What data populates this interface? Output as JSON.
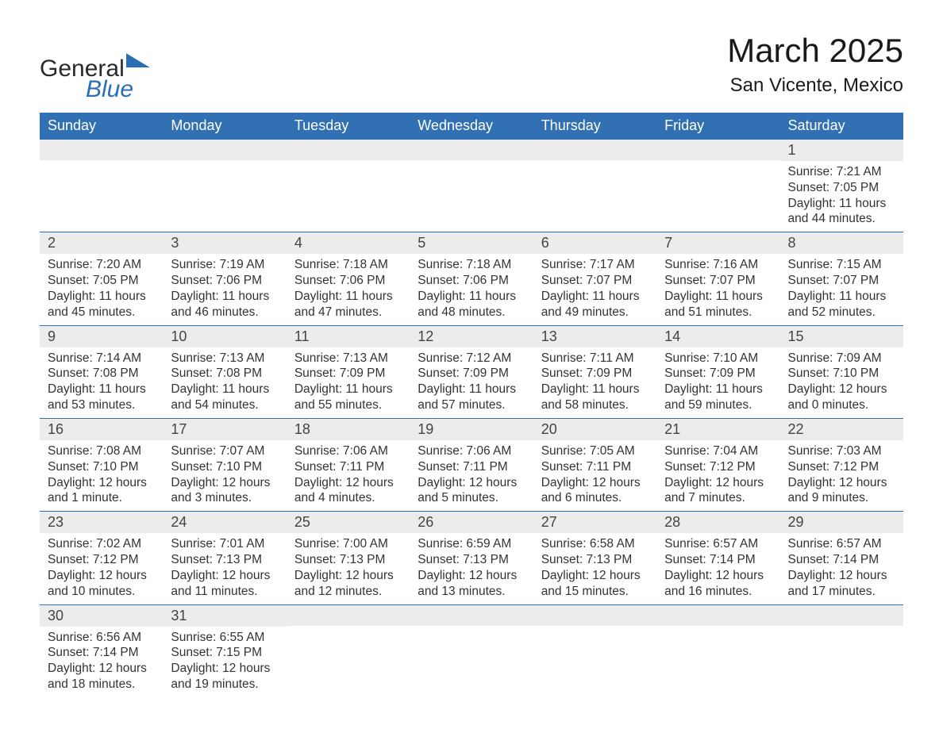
{
  "logo": {
    "word1": "General",
    "word2": "Blue"
  },
  "title": "March 2025",
  "location": "San Vicente, Mexico",
  "colors": {
    "header_bg": "#3070b3",
    "header_text": "#ffffff",
    "daynum_bg": "#ececec",
    "text": "#333333",
    "rule": "#3070b3",
    "logo_blue": "#296fb4",
    "page_bg": "#ffffff"
  },
  "typography": {
    "title_fontsize": 42,
    "location_fontsize": 24,
    "weekday_fontsize": 18,
    "daynum_fontsize": 18,
    "body_fontsize": 15.5,
    "font_family": "Arial"
  },
  "weekdays": [
    "Sunday",
    "Monday",
    "Tuesday",
    "Wednesday",
    "Thursday",
    "Friday",
    "Saturday"
  ],
  "weeks": [
    [
      {
        "n": "",
        "sunrise": "",
        "sunset": "",
        "daylight": ""
      },
      {
        "n": "",
        "sunrise": "",
        "sunset": "",
        "daylight": ""
      },
      {
        "n": "",
        "sunrise": "",
        "sunset": "",
        "daylight": ""
      },
      {
        "n": "",
        "sunrise": "",
        "sunset": "",
        "daylight": ""
      },
      {
        "n": "",
        "sunrise": "",
        "sunset": "",
        "daylight": ""
      },
      {
        "n": "",
        "sunrise": "",
        "sunset": "",
        "daylight": ""
      },
      {
        "n": "1",
        "sunrise": "Sunrise: 7:21 AM",
        "sunset": "Sunset: 7:05 PM",
        "daylight": "Daylight: 11 hours and 44 minutes."
      }
    ],
    [
      {
        "n": "2",
        "sunrise": "Sunrise: 7:20 AM",
        "sunset": "Sunset: 7:05 PM",
        "daylight": "Daylight: 11 hours and 45 minutes."
      },
      {
        "n": "3",
        "sunrise": "Sunrise: 7:19 AM",
        "sunset": "Sunset: 7:06 PM",
        "daylight": "Daylight: 11 hours and 46 minutes."
      },
      {
        "n": "4",
        "sunrise": "Sunrise: 7:18 AM",
        "sunset": "Sunset: 7:06 PM",
        "daylight": "Daylight: 11 hours and 47 minutes."
      },
      {
        "n": "5",
        "sunrise": "Sunrise: 7:18 AM",
        "sunset": "Sunset: 7:06 PM",
        "daylight": "Daylight: 11 hours and 48 minutes."
      },
      {
        "n": "6",
        "sunrise": "Sunrise: 7:17 AM",
        "sunset": "Sunset: 7:07 PM",
        "daylight": "Daylight: 11 hours and 49 minutes."
      },
      {
        "n": "7",
        "sunrise": "Sunrise: 7:16 AM",
        "sunset": "Sunset: 7:07 PM",
        "daylight": "Daylight: 11 hours and 51 minutes."
      },
      {
        "n": "8",
        "sunrise": "Sunrise: 7:15 AM",
        "sunset": "Sunset: 7:07 PM",
        "daylight": "Daylight: 11 hours and 52 minutes."
      }
    ],
    [
      {
        "n": "9",
        "sunrise": "Sunrise: 7:14 AM",
        "sunset": "Sunset: 7:08 PM",
        "daylight": "Daylight: 11 hours and 53 minutes."
      },
      {
        "n": "10",
        "sunrise": "Sunrise: 7:13 AM",
        "sunset": "Sunset: 7:08 PM",
        "daylight": "Daylight: 11 hours and 54 minutes."
      },
      {
        "n": "11",
        "sunrise": "Sunrise: 7:13 AM",
        "sunset": "Sunset: 7:09 PM",
        "daylight": "Daylight: 11 hours and 55 minutes."
      },
      {
        "n": "12",
        "sunrise": "Sunrise: 7:12 AM",
        "sunset": "Sunset: 7:09 PM",
        "daylight": "Daylight: 11 hours and 57 minutes."
      },
      {
        "n": "13",
        "sunrise": "Sunrise: 7:11 AM",
        "sunset": "Sunset: 7:09 PM",
        "daylight": "Daylight: 11 hours and 58 minutes."
      },
      {
        "n": "14",
        "sunrise": "Sunrise: 7:10 AM",
        "sunset": "Sunset: 7:09 PM",
        "daylight": "Daylight: 11 hours and 59 minutes."
      },
      {
        "n": "15",
        "sunrise": "Sunrise: 7:09 AM",
        "sunset": "Sunset: 7:10 PM",
        "daylight": "Daylight: 12 hours and 0 minutes."
      }
    ],
    [
      {
        "n": "16",
        "sunrise": "Sunrise: 7:08 AM",
        "sunset": "Sunset: 7:10 PM",
        "daylight": "Daylight: 12 hours and 1 minute."
      },
      {
        "n": "17",
        "sunrise": "Sunrise: 7:07 AM",
        "sunset": "Sunset: 7:10 PM",
        "daylight": "Daylight: 12 hours and 3 minutes."
      },
      {
        "n": "18",
        "sunrise": "Sunrise: 7:06 AM",
        "sunset": "Sunset: 7:11 PM",
        "daylight": "Daylight: 12 hours and 4 minutes."
      },
      {
        "n": "19",
        "sunrise": "Sunrise: 7:06 AM",
        "sunset": "Sunset: 7:11 PM",
        "daylight": "Daylight: 12 hours and 5 minutes."
      },
      {
        "n": "20",
        "sunrise": "Sunrise: 7:05 AM",
        "sunset": "Sunset: 7:11 PM",
        "daylight": "Daylight: 12 hours and 6 minutes."
      },
      {
        "n": "21",
        "sunrise": "Sunrise: 7:04 AM",
        "sunset": "Sunset: 7:12 PM",
        "daylight": "Daylight: 12 hours and 7 minutes."
      },
      {
        "n": "22",
        "sunrise": "Sunrise: 7:03 AM",
        "sunset": "Sunset: 7:12 PM",
        "daylight": "Daylight: 12 hours and 9 minutes."
      }
    ],
    [
      {
        "n": "23",
        "sunrise": "Sunrise: 7:02 AM",
        "sunset": "Sunset: 7:12 PM",
        "daylight": "Daylight: 12 hours and 10 minutes."
      },
      {
        "n": "24",
        "sunrise": "Sunrise: 7:01 AM",
        "sunset": "Sunset: 7:13 PM",
        "daylight": "Daylight: 12 hours and 11 minutes."
      },
      {
        "n": "25",
        "sunrise": "Sunrise: 7:00 AM",
        "sunset": "Sunset: 7:13 PM",
        "daylight": "Daylight: 12 hours and 12 minutes."
      },
      {
        "n": "26",
        "sunrise": "Sunrise: 6:59 AM",
        "sunset": "Sunset: 7:13 PM",
        "daylight": "Daylight: 12 hours and 13 minutes."
      },
      {
        "n": "27",
        "sunrise": "Sunrise: 6:58 AM",
        "sunset": "Sunset: 7:13 PM",
        "daylight": "Daylight: 12 hours and 15 minutes."
      },
      {
        "n": "28",
        "sunrise": "Sunrise: 6:57 AM",
        "sunset": "Sunset: 7:14 PM",
        "daylight": "Daylight: 12 hours and 16 minutes."
      },
      {
        "n": "29",
        "sunrise": "Sunrise: 6:57 AM",
        "sunset": "Sunset: 7:14 PM",
        "daylight": "Daylight: 12 hours and 17 minutes."
      }
    ],
    [
      {
        "n": "30",
        "sunrise": "Sunrise: 6:56 AM",
        "sunset": "Sunset: 7:14 PM",
        "daylight": "Daylight: 12 hours and 18 minutes."
      },
      {
        "n": "31",
        "sunrise": "Sunrise: 6:55 AM",
        "sunset": "Sunset: 7:15 PM",
        "daylight": "Daylight: 12 hours and 19 minutes."
      },
      {
        "n": "",
        "sunrise": "",
        "sunset": "",
        "daylight": ""
      },
      {
        "n": "",
        "sunrise": "",
        "sunset": "",
        "daylight": ""
      },
      {
        "n": "",
        "sunrise": "",
        "sunset": "",
        "daylight": ""
      },
      {
        "n": "",
        "sunrise": "",
        "sunset": "",
        "daylight": ""
      },
      {
        "n": "",
        "sunrise": "",
        "sunset": "",
        "daylight": ""
      }
    ]
  ]
}
